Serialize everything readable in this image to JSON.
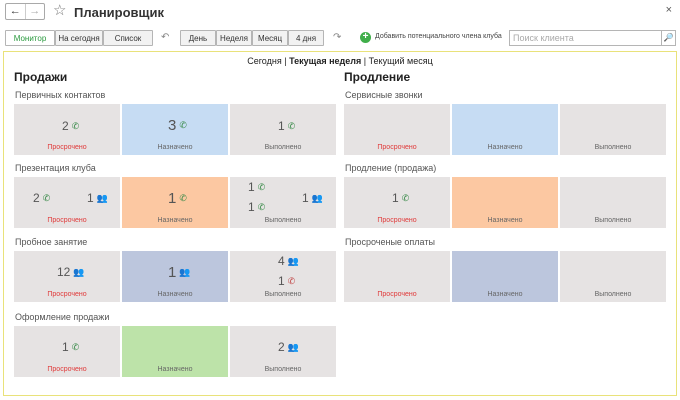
{
  "window": {
    "title": "Планировщик",
    "back": "←",
    "forward": "→",
    "star": "☆",
    "close": "×"
  },
  "toolbar": {
    "view_buttons": [
      "Монитор",
      "На сегодня",
      "Список"
    ],
    "period_buttons": [
      "День",
      "Неделя",
      "Месяц",
      "4 дня"
    ],
    "add_member_label": "Добавить потенциального члена клуба",
    "add_icon": "+",
    "search_placeholder": "Поиск клиента",
    "search_button": "🔎"
  },
  "periods": {
    "today": "Сегодня",
    "sep1": " | ",
    "week": "Текущая неделя",
    "sep2": " | ",
    "month": "Текущий месяц"
  },
  "statuses": {
    "overdue": "Просрочено",
    "assigned": "Назначено",
    "done": "Выполнено"
  },
  "icons": {
    "phone": "phone-icon",
    "people": "people-icon",
    "missed": "missed-call-icon"
  },
  "colors": {
    "overdue_text": "#e03a3a",
    "assigned_blue": "#c6dcf3",
    "assigned_orange": "#fcc8a2",
    "assigned_slate": "#bcc6dd",
    "assigned_green": "#bde3a9",
    "neutral": "#e6e3e3"
  },
  "sales": {
    "title": "Продажи",
    "sections": [
      {
        "label": "Первичных контактов",
        "cells": {
          "overdue": [
            {
              "value": "2",
              "icon": "phone"
            }
          ],
          "assigned": [
            {
              "value": "3",
              "icon": "phone"
            }
          ],
          "done": [
            {
              "value": "1",
              "icon": "phone"
            }
          ]
        }
      },
      {
        "label": "Презентация клуба",
        "cells": {
          "overdue": [
            {
              "value": "2",
              "icon": "phone"
            },
            {
              "value": "1",
              "icon": "people"
            }
          ],
          "assigned": [
            {
              "value": "1",
              "icon": "phone"
            }
          ],
          "done": [
            {
              "value": "1",
              "icon": "phone"
            },
            {
              "value": "1",
              "icon": "phone"
            },
            {
              "value": "1",
              "icon": "people"
            }
          ]
        }
      },
      {
        "label": "Пробное занятие",
        "cells": {
          "overdue": [
            {
              "value": "12",
              "icon": "people"
            }
          ],
          "assigned": [
            {
              "value": "1",
              "icon": "people"
            }
          ],
          "done": [
            {
              "value": "4",
              "icon": "people"
            },
            {
              "value": "1",
              "icon": "missed"
            }
          ]
        }
      },
      {
        "label": "Оформление продажи",
        "cells": {
          "overdue": [
            {
              "value": "1",
              "icon": "phone"
            }
          ],
          "assigned": [],
          "done": [
            {
              "value": "2",
              "icon": "people"
            }
          ]
        }
      }
    ]
  },
  "renewal": {
    "title": "Продление",
    "sections": [
      {
        "label": "Сервисные звонки",
        "cells": {
          "overdue": [],
          "assigned": [],
          "done": []
        }
      },
      {
        "label": "Продление (продажа)",
        "cells": {
          "overdue": [
            {
              "value": "1",
              "icon": "phone"
            }
          ],
          "assigned": [],
          "done": []
        }
      },
      {
        "label": "Просроченые оплаты",
        "cells": {
          "overdue": [],
          "assigned": [],
          "done": []
        }
      }
    ]
  }
}
